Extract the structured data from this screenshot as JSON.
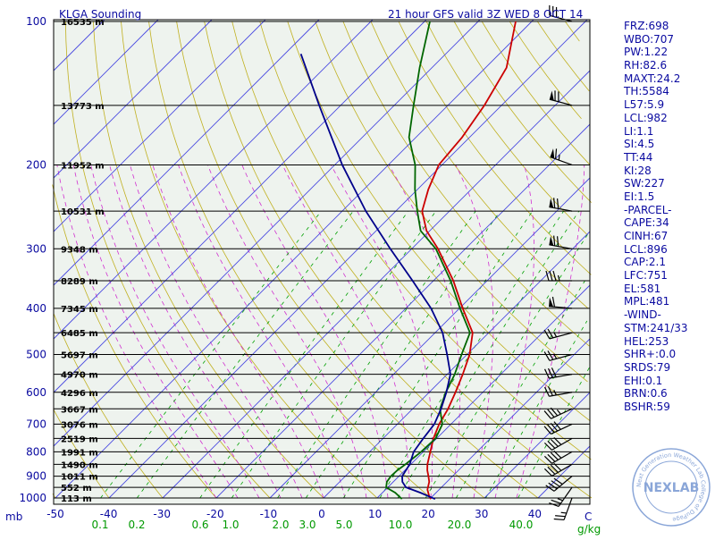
{
  "header": {
    "station": "KLGA Sounding",
    "valid": "21 hour GFS valid 3Z WED   8 OCT 14"
  },
  "logo_text": "NEXLAB",
  "logo_ring": "Next Generation Weather Lab   College of DuPage",
  "indices": [
    "FRZ:698",
    "WBO:707",
    "PW:1.22",
    "RH:82.6",
    "MAXT:24.2",
    "TH:5584",
    "L57:5.9",
    "LCL:982",
    "LI:1.1",
    "SI:4.5",
    "TT:44",
    "KI:28",
    "SW:227",
    "EI:1.5",
    "-PARCEL-",
    "CAPE:34",
    "CINH:67",
    "LCL:896",
    "CAP:2.1",
    "LFC:751",
    "EL:581",
    "MPL:481",
    "-WIND-",
    "STM:241/33",
    "HEL:253",
    "SHR+:0.0",
    "SRDS:79",
    "EHI:0.1",
    "BRN:0.6",
    "BSHR:59"
  ],
  "chart_data": {
    "type": "line",
    "title": "21 hour GFS valid 3Z WED   8 OCT 14",
    "subtitle": "KLGA Sounding",
    "diagram": "skew-T log-P",
    "ylabel": "mb",
    "xlabel": "C",
    "mixing_ratio_label": "g/kg",
    "x_range": [
      -50,
      50
    ],
    "p_range": [
      1000,
      100
    ],
    "pressure_ticks": [
      100,
      200,
      300,
      400,
      500,
      600,
      700,
      800,
      900,
      1000
    ],
    "temperature_ticks": [
      -50,
      -40,
      -30,
      -20,
      -10,
      0,
      10,
      20,
      30,
      40
    ],
    "mixing_ratio_ticks": [
      "0.1",
      "0.2",
      "0.6",
      "1.0",
      "2.0",
      "3.0",
      "5.0",
      "10.0",
      "20.0",
      "40.0"
    ],
    "height_labels": [
      {
        "p": 100,
        "h": "16535 m"
      },
      {
        "p": 150,
        "h": "13773 m"
      },
      {
        "p": 200,
        "h": "11952 m"
      },
      {
        "p": 250,
        "h": "10531 m"
      },
      {
        "p": 300,
        "h": "9348 m"
      },
      {
        "p": 350,
        "h": "8289 m"
      },
      {
        "p": 400,
        "h": "7345 m"
      },
      {
        "p": 450,
        "h": "6485 m"
      },
      {
        "p": 500,
        "h": "5697 m"
      },
      {
        "p": 550,
        "h": "4970 m"
      },
      {
        "p": 600,
        "h": "4296 m"
      },
      {
        "p": 650,
        "h": "3667 m"
      },
      {
        "p": 700,
        "h": "3076 m"
      },
      {
        "p": 750,
        "h": "2519 m"
      },
      {
        "p": 800,
        "h": "1991 m"
      },
      {
        "p": 850,
        "h": "1490 m"
      },
      {
        "p": 900,
        "h": "1011 m"
      },
      {
        "p": 950,
        "h": "552 m"
      },
      {
        "p": 1000,
        "h": "113 m"
      }
    ],
    "series": [
      {
        "color": "#cc0000",
        "points": [
          [
            1005,
            20.2
          ],
          [
            990,
            19.3
          ],
          [
            960,
            17.8
          ],
          [
            925,
            16.7
          ],
          [
            900,
            15.5
          ],
          [
            875,
            14.2
          ],
          [
            850,
            13.1
          ],
          [
            800,
            11.3
          ],
          [
            750,
            9.4
          ],
          [
            700,
            7.8
          ],
          [
            650,
            6.6
          ],
          [
            600,
            4.9
          ],
          [
            550,
            2.9
          ],
          [
            500,
            0.5
          ],
          [
            450,
            -3.0
          ],
          [
            400,
            -9.4
          ],
          [
            350,
            -16.3
          ],
          [
            300,
            -25.1
          ],
          [
            275,
            -30.6
          ],
          [
            250,
            -35.1
          ],
          [
            225,
            -38.0
          ],
          [
            200,
            -40.6
          ],
          [
            175,
            -41.4
          ],
          [
            150,
            -43.2
          ],
          [
            125,
            -46.1
          ],
          [
            100,
            -53.0
          ]
        ]
      },
      {
        "color": "#006600",
        "points": [
          [
            1005,
            14.8
          ],
          [
            975,
            12.4
          ],
          [
            950,
            9.7
          ],
          [
            925,
            8.8
          ],
          [
            900,
            8.5
          ],
          [
            875,
            8.6
          ],
          [
            850,
            9.0
          ],
          [
            800,
            9.6
          ],
          [
            750,
            9.8
          ],
          [
            700,
            8.4
          ],
          [
            650,
            5.1
          ],
          [
            600,
            3.1
          ],
          [
            550,
            1.4
          ],
          [
            500,
            -1.0
          ],
          [
            450,
            -3.5
          ],
          [
            400,
            -9.9
          ],
          [
            350,
            -16.8
          ],
          [
            300,
            -25.5
          ],
          [
            275,
            -31.7
          ],
          [
            250,
            -36.0
          ],
          [
            225,
            -40.5
          ],
          [
            200,
            -45.0
          ],
          [
            175,
            -51.3
          ],
          [
            150,
            -56.4
          ],
          [
            125,
            -62.3
          ],
          [
            100,
            -69.0
          ]
        ]
      },
      {
        "color": "#00008b",
        "points": [
          [
            1005,
            21.0
          ],
          [
            975,
            17.1
          ],
          [
            950,
            13.4
          ],
          [
            925,
            11.7
          ],
          [
            900,
            10.6
          ],
          [
            850,
            9.8
          ],
          [
            800,
            8.2
          ],
          [
            750,
            7.5
          ],
          [
            700,
            6.9
          ],
          [
            650,
            5.3
          ],
          [
            600,
            3.2
          ],
          [
            550,
            0.6
          ],
          [
            500,
            -3.7
          ],
          [
            450,
            -8.6
          ],
          [
            400,
            -15.3
          ],
          [
            350,
            -23.9
          ],
          [
            300,
            -34.0
          ],
          [
            250,
            -45.6
          ],
          [
            200,
            -58.6
          ],
          [
            150,
            -74.0
          ],
          [
            117,
            -87.0
          ]
        ]
      }
    ],
    "wind_barbs": [
      {
        "p": 100,
        "dir": 285,
        "kt": 30
      },
      {
        "p": 150,
        "dir": 285,
        "kt": 70
      },
      {
        "p": 200,
        "dir": 290,
        "kt": 65
      },
      {
        "p": 250,
        "dir": 280,
        "kt": 70
      },
      {
        "p": 300,
        "dir": 280,
        "kt": 70
      },
      {
        "p": 350,
        "dir": 270,
        "kt": 35
      },
      {
        "p": 400,
        "dir": 275,
        "kt": 60
      },
      {
        "p": 450,
        "dir": 255,
        "kt": 25
      },
      {
        "p": 500,
        "dir": 255,
        "kt": 25
      },
      {
        "p": 550,
        "dir": 260,
        "kt": 30
      },
      {
        "p": 600,
        "dir": 260,
        "kt": 25
      },
      {
        "p": 650,
        "dir": 245,
        "kt": 35
      },
      {
        "p": 700,
        "dir": 245,
        "kt": 40
      },
      {
        "p": 750,
        "dir": 240,
        "kt": 40
      },
      {
        "p": 800,
        "dir": 240,
        "kt": 40
      },
      {
        "p": 850,
        "dir": 240,
        "kt": 40
      },
      {
        "p": 900,
        "dir": 230,
        "kt": 40
      },
      {
        "p": 950,
        "dir": 215,
        "kt": 25
      },
      {
        "p": 1000,
        "dir": 200,
        "kt": 25
      }
    ],
    "colors": {
      "temperature": "#cc0000",
      "dewpoint": "#006600",
      "parcel": "#00008b",
      "isobar": "#000000",
      "isotherm": "#4a4ae0",
      "dry_adiabat": "#c0b020",
      "moist_adiabat": "#d030d0",
      "mixing_ratio": "#00a000",
      "axis_text": "#0a0aa0",
      "mixing_text": "#009900",
      "background": "#eef3ee",
      "barb": "#000000"
    },
    "grid": true
  }
}
